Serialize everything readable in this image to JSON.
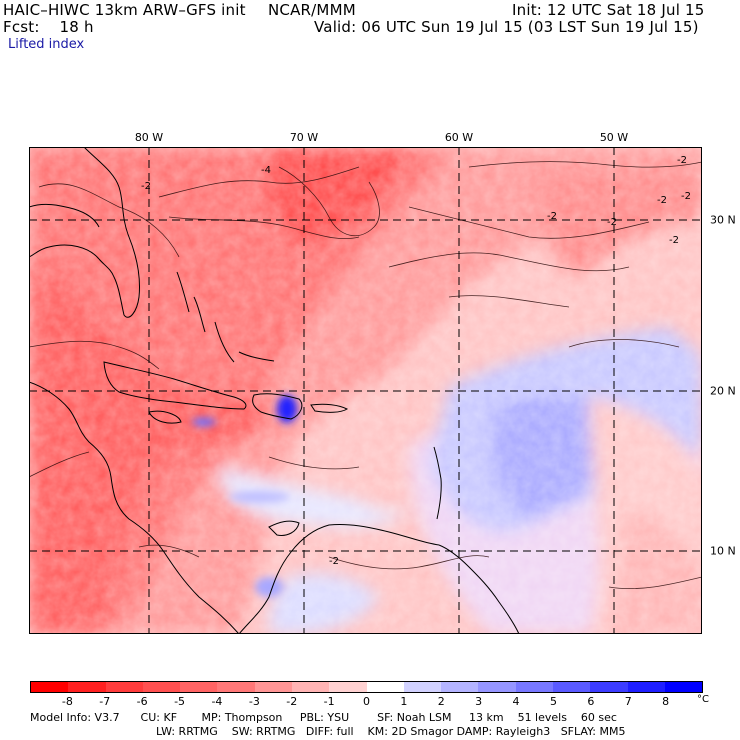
{
  "header": {
    "model": "HAIC–HIWC 13km ARW–GFS init",
    "org": "NCAR/MMM",
    "init": "Init: 12 UTC Sat 18 Jul 15",
    "fcst": "Fcst:    18 h",
    "valid": "Valid: 06 UTC Sun 19 Jul 15 (03 LST Sun 19 Jul 15)",
    "field": "Lifted index"
  },
  "map": {
    "lon_labels": [
      "80 W",
      "70 W",
      "60 W",
      "50 W"
    ],
    "lat_labels": [
      "30 N",
      "20 N",
      "10 N"
    ],
    "contour_labels": [
      "-2",
      "-2",
      "-2",
      "-2",
      "-2",
      "-2",
      "-4",
      "-2",
      "-2"
    ],
    "grid_color": "#000000",
    "coast_color": "#000000"
  },
  "colorbar": {
    "labels": [
      "-8",
      "-7",
      "-6",
      "-5",
      "-4",
      "-3",
      "-2",
      "-1",
      "0",
      "1",
      "2",
      "3",
      "4",
      "5",
      "6",
      "7",
      "8"
    ],
    "unit": "°C",
    "colors": [
      "#ff0000",
      "#ff2020",
      "#ff3c3c",
      "#ff5050",
      "#ff6464",
      "#ff7878",
      "#ff9696",
      "#ffb4b4",
      "#ffd2d2",
      "#ffffff",
      "#d2d2ff",
      "#b4b4ff",
      "#9696ff",
      "#7878ff",
      "#5a5aff",
      "#3c3cff",
      "#1e1eff",
      "#0000ff"
    ]
  },
  "footer": {
    "line1": "Model Info: V3.7      CU: KF       MP: Thompson     PBL: YSU        SF: Noah LSM     13 km    51 levels    60 sec",
    "line2": "LW: RRTMG    SW: RRTMG   DIFF: full    KM: 2D Smagor DAMP: Rayleigh3   SFLAY: MM5"
  }
}
